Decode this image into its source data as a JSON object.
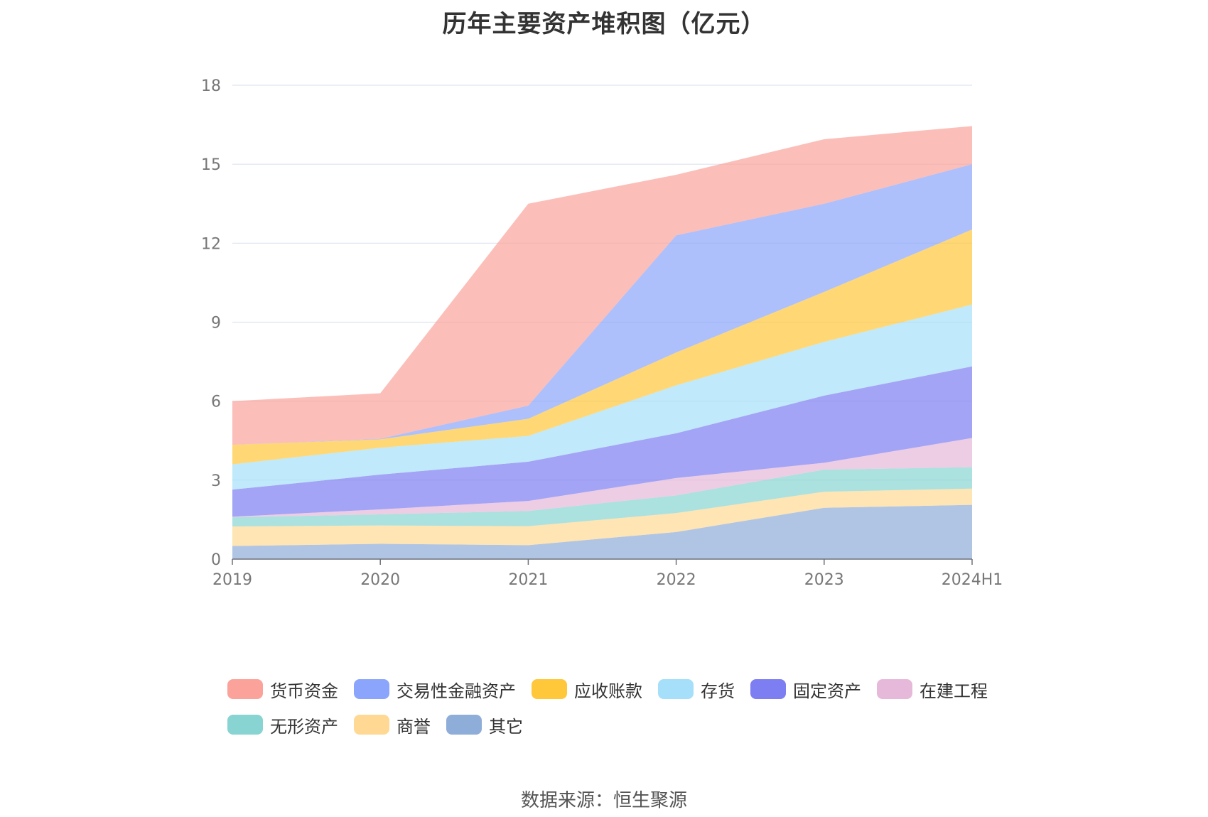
{
  "title": "历年主要资产堆积图（亿元）",
  "source": "数据来源：恒生聚源",
  "chart_data": {
    "type": "area",
    "stacked": true,
    "title": "历年主要资产堆积图（亿元）",
    "xlabel": "",
    "ylabel": "",
    "x": [
      "2019",
      "2020",
      "2021",
      "2022",
      "2023",
      "2024H1"
    ],
    "ylim": [
      0,
      18
    ],
    "yticks": [
      0,
      3,
      6,
      9,
      12,
      15,
      18
    ],
    "grid": true,
    "legend_position": "bottom",
    "series": [
      {
        "name": "其它",
        "color": "#8fadd9",
        "values": [
          0.5,
          0.58,
          0.53,
          1.03,
          1.95,
          2.06
        ]
      },
      {
        "name": "商誉",
        "color": "#ffd994",
        "values": [
          0.74,
          0.7,
          0.72,
          0.72,
          0.61,
          0.62
        ]
      },
      {
        "name": "无形资产",
        "color": "#87d4d2",
        "values": [
          0.35,
          0.42,
          0.58,
          0.67,
          0.84,
          0.81
        ]
      },
      {
        "name": "在建工程",
        "color": "#e6b8d9",
        "values": [
          0.02,
          0.19,
          0.38,
          0.66,
          0.26,
          1.11
        ]
      },
      {
        "name": "固定资产",
        "color": "#7d7ef2",
        "values": [
          1.03,
          1.32,
          1.49,
          1.7,
          2.55,
          2.72
        ]
      },
      {
        "name": "存货",
        "color": "#a5dff9",
        "values": [
          0.96,
          1.02,
          0.98,
          1.82,
          2.04,
          2.35
        ]
      },
      {
        "name": "应收账款",
        "color": "#ffc73a",
        "values": [
          0.74,
          0.32,
          0.65,
          1.25,
          1.9,
          2.85
        ]
      },
      {
        "name": "交易性金融资产",
        "color": "#8aa5fb",
        "values": [
          0.0,
          0.02,
          0.5,
          4.45,
          3.35,
          2.48
        ]
      },
      {
        "name": "货币资金",
        "color": "#fba39a",
        "values": [
          1.66,
          1.73,
          7.67,
          2.3,
          2.45,
          1.45
        ]
      }
    ],
    "legend_order": [
      "货币资金",
      "交易性金融资产",
      "应收账款",
      "存货",
      "固定资产",
      "在建工程",
      "无形资产",
      "商誉",
      "其它"
    ]
  }
}
